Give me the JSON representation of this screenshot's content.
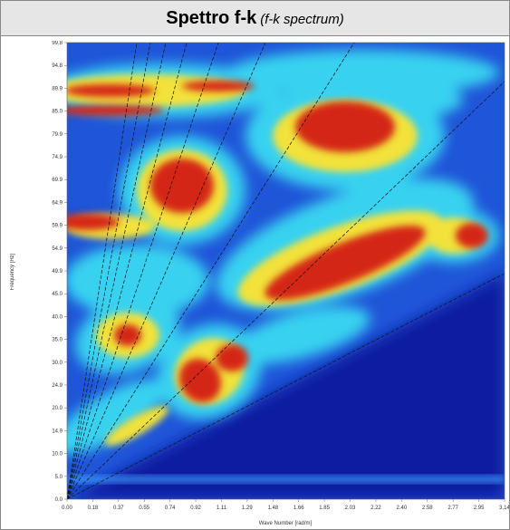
{
  "header": {
    "title": "Spettro f-k",
    "subtitle": "(f-k spectrum)"
  },
  "figure": {
    "y_label": "Frequency [Hz]",
    "x_label": "Wave Number [rad/m]",
    "yticks": [
      "0.0",
      "5.0",
      "10.0",
      "14.9",
      "20.0",
      "24.9",
      "30.0",
      "35.0",
      "40.0",
      "45.0",
      "49.9",
      "54.9",
      "59.9",
      "64.9",
      "69.9",
      "74.9",
      "79.9",
      "85.0",
      "89.9",
      "94.8",
      "99.8"
    ],
    "xticks": [
      "0.00",
      "0.18",
      "0.37",
      "0.55",
      "0.74",
      "0.92",
      "1.11",
      "1.29",
      "1.48",
      "1.66",
      "1.85",
      "2.03",
      "2.22",
      "2.40",
      "2.58",
      "2.77",
      "2.95",
      "3.14"
    ]
  }
}
